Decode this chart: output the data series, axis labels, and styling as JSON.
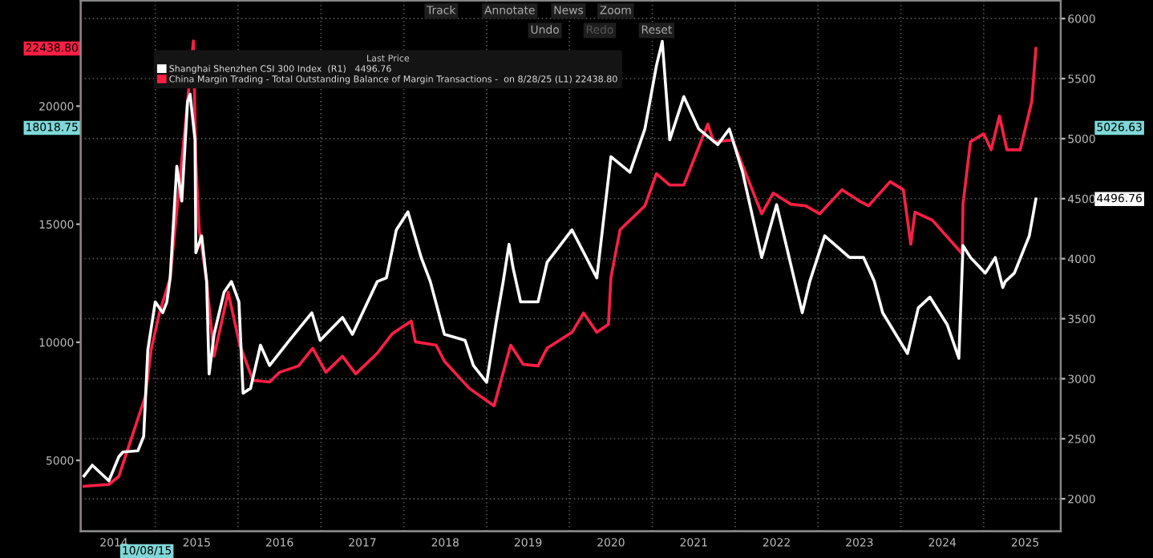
{
  "chart_data": {
    "type": "line",
    "legend_title": "Last Price",
    "xlim": [
      2014.1,
      2025.93
    ],
    "xticks": [
      {
        "value": 2014.5,
        "label": "2014"
      },
      {
        "value": 2015,
        "label": null
      },
      {
        "value": 2015.5,
        "label": "2015"
      },
      {
        "value": 2016,
        "label": null
      },
      {
        "value": 2016.5,
        "label": "2016"
      },
      {
        "value": 2017,
        "label": null
      },
      {
        "value": 2017.5,
        "label": "2017"
      },
      {
        "value": 2018,
        "label": null
      },
      {
        "value": 2018.5,
        "label": "2018"
      },
      {
        "value": 2019,
        "label": null
      },
      {
        "value": 2019.5,
        "label": "2019"
      },
      {
        "value": 2020,
        "label": null
      },
      {
        "value": 2020.5,
        "label": "2020"
      },
      {
        "value": 2021,
        "label": null
      },
      {
        "value": 2021.5,
        "label": "2021"
      },
      {
        "value": 2022,
        "label": null
      },
      {
        "value": 2022.5,
        "label": "2022"
      },
      {
        "value": 2023,
        "label": null
      },
      {
        "value": 2023.5,
        "label": "2023"
      },
      {
        "value": 2024,
        "label": null
      },
      {
        "value": 2024.5,
        "label": "2024"
      },
      {
        "value": 2025,
        "label": null
      },
      {
        "value": 2025.5,
        "label": "2025"
      }
    ],
    "ylim": [
      2000,
      24470
    ],
    "yticks": [
      5000,
      10000,
      15000,
      20000
    ],
    "y2lim": [
      1730,
      6150
    ],
    "y2ticks": [
      2000,
      2500,
      3000,
      3500,
      4000,
      4500,
      5000,
      5500,
      6000
    ],
    "grid": true,
    "legend": "top left",
    "series": [
      {
        "name": "Shanghai Shenzhen CSI 300 Index  (R1)   4496.76",
        "color": "#ffffff",
        "axis": "y2",
        "x": [
          2014.14,
          2014.24,
          2014.44,
          2014.56,
          2014.61,
          2014.79,
          2014.86,
          2014.91,
          2015.0,
          2015.09,
          2015.14,
          2015.18,
          2015.26,
          2015.32,
          2015.39,
          2015.42,
          2015.48,
          2015.49,
          2015.56,
          2015.62,
          2015.65,
          2015.71,
          2015.83,
          2015.92,
          2016.01,
          2016.06,
          2016.15,
          2016.27,
          2016.38,
          2016.62,
          2016.89,
          2016.99,
          2017.26,
          2017.38,
          2017.68,
          2017.79,
          2017.91,
          2018.05,
          2018.21,
          2018.32,
          2018.49,
          2018.74,
          2018.84,
          2019.0,
          2019.11,
          2019.2,
          2019.27,
          2019.32,
          2019.41,
          2019.62,
          2019.73,
          2020.03,
          2020.33,
          2020.5,
          2020.73,
          2020.91,
          2021.05,
          2021.12,
          2021.21,
          2021.38,
          2021.56,
          2021.79,
          2021.93,
          2022.09,
          2022.32,
          2022.5,
          2022.72,
          2022.81,
          2022.9,
          2023.08,
          2023.38,
          2023.55,
          2023.68,
          2023.78,
          2024.08,
          2024.21,
          2024.35,
          2024.56,
          2024.7,
          2024.75,
          2024.84,
          2025.02,
          2025.14,
          2025.23,
          2025.26,
          2025.37,
          2025.55,
          2025.63
        ],
        "values": [
          2190,
          2280,
          2150,
          2350,
          2390,
          2400,
          2520,
          3240,
          3640,
          3550,
          3640,
          3840,
          4770,
          4480,
          5310,
          5370,
          4990,
          4050,
          4190,
          3810,
          3040,
          3370,
          3720,
          3810,
          3640,
          2880,
          2920,
          3280,
          3110,
          3320,
          3550,
          3320,
          3510,
          3370,
          3810,
          3840,
          4240,
          4390,
          4010,
          3810,
          3370,
          3320,
          3110,
          2970,
          3450,
          3810,
          4120,
          3920,
          3640,
          3640,
          3970,
          4240,
          3840,
          4850,
          4720,
          5080,
          5610,
          5810,
          4990,
          5350,
          5080,
          4950,
          5080,
          4720,
          4010,
          4450,
          3810,
          3550,
          3810,
          4190,
          4010,
          4010,
          3810,
          3550,
          3210,
          3590,
          3680,
          3450,
          3170,
          4110,
          4010,
          3880,
          4010,
          3760,
          3810,
          3880,
          4190,
          4497
        ]
      },
      {
        "name": "China Margin Trading - Total Outstanding Balance of Margin Transactions -  on 8/28/25 (L1) 22438.80",
        "color": "#ff1f45",
        "x": [
          2014.14,
          2014.44,
          2014.56,
          2014.7,
          2014.88,
          2014.95,
          2015.05,
          2015.18,
          2015.32,
          2015.46,
          2015.49,
          2015.53,
          2015.62,
          2015.71,
          2015.88,
          2016.02,
          2016.18,
          2016.38,
          2016.5,
          2016.73,
          2016.9,
          2017.06,
          2017.26,
          2017.42,
          2017.68,
          2017.86,
          2018.09,
          2018.14,
          2018.39,
          2018.49,
          2018.79,
          2019.09,
          2019.29,
          2019.44,
          2019.62,
          2019.73,
          2020.03,
          2020.17,
          2020.33,
          2020.47,
          2020.5,
          2020.61,
          2020.91,
          2021.05,
          2021.21,
          2021.38,
          2021.67,
          2021.74,
          2021.97,
          2022.32,
          2022.46,
          2022.67,
          2022.85,
          2023.02,
          2023.29,
          2023.5,
          2023.61,
          2023.87,
          2024.03,
          2024.12,
          2024.17,
          2024.38,
          2024.74,
          2024.75,
          2024.84,
          2025.0,
          2025.09,
          2025.19,
          2025.28,
          2025.44,
          2025.58,
          2025.63
        ],
        "values": [
          3900,
          3980,
          4320,
          5810,
          7710,
          9680,
          11240,
          12730,
          17680,
          22760,
          17680,
          14760,
          12590,
          9410,
          12120,
          9880,
          8390,
          8320,
          8730,
          9000,
          9750,
          8730,
          9410,
          8660,
          9540,
          10360,
          10900,
          10020,
          9880,
          9200,
          8050,
          7310,
          9880,
          9070,
          9000,
          9750,
          10420,
          11240,
          10420,
          10760,
          12730,
          14760,
          15780,
          17140,
          16660,
          16660,
          19240,
          18490,
          18560,
          15440,
          16320,
          15850,
          15780,
          15440,
          16460,
          15980,
          15780,
          16800,
          16460,
          14150,
          15510,
          15170,
          13750,
          15850,
          18490,
          18830,
          18150,
          19580,
          18150,
          18150,
          20190,
          22439
        ]
      }
    ],
    "annotations": [
      "4496.76",
      "22438.80",
      "18018.75",
      "5026.63",
      "10/08/15",
      "Track",
      "Annotate",
      "News",
      "Zoom",
      "Undo",
      "Redo",
      "Reset"
    ]
  }
}
